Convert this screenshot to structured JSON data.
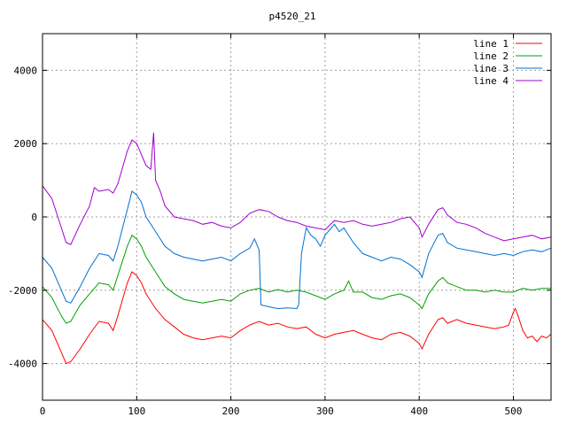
{
  "chart_data": {
    "type": "line",
    "title": "p4520_21",
    "xlabel": "",
    "ylabel": "",
    "xlim": [
      0,
      540
    ],
    "ylim": [
      -5000,
      5000
    ],
    "x_ticks": [
      0,
      100,
      200,
      300,
      400,
      500
    ],
    "y_ticks": [
      -4000,
      -2000,
      0,
      2000,
      4000
    ],
    "grid": true,
    "legend_position": "top-right",
    "series": [
      {
        "name": "line 1",
        "color": "#ff0000",
        "points": [
          [
            0,
            -2800
          ],
          [
            10,
            -3100
          ],
          [
            20,
            -3700
          ],
          [
            25,
            -4000
          ],
          [
            30,
            -3950
          ],
          [
            40,
            -3600
          ],
          [
            50,
            -3200
          ],
          [
            60,
            -2850
          ],
          [
            70,
            -2900
          ],
          [
            75,
            -3100
          ],
          [
            80,
            -2700
          ],
          [
            90,
            -1800
          ],
          [
            95,
            -1500
          ],
          [
            100,
            -1600
          ],
          [
            105,
            -1800
          ],
          [
            110,
            -2100
          ],
          [
            120,
            -2500
          ],
          [
            130,
            -2800
          ],
          [
            140,
            -3000
          ],
          [
            150,
            -3200
          ],
          [
            160,
            -3300
          ],
          [
            170,
            -3350
          ],
          [
            180,
            -3300
          ],
          [
            190,
            -3250
          ],
          [
            200,
            -3300
          ],
          [
            210,
            -3100
          ],
          [
            220,
            -2950
          ],
          [
            230,
            -2850
          ],
          [
            240,
            -2950
          ],
          [
            250,
            -2900
          ],
          [
            260,
            -3000
          ],
          [
            270,
            -3050
          ],
          [
            280,
            -3000
          ],
          [
            290,
            -3200
          ],
          [
            300,
            -3300
          ],
          [
            310,
            -3200
          ],
          [
            320,
            -3150
          ],
          [
            330,
            -3100
          ],
          [
            340,
            -3200
          ],
          [
            350,
            -3300
          ],
          [
            360,
            -3350
          ],
          [
            370,
            -3200
          ],
          [
            380,
            -3150
          ],
          [
            390,
            -3250
          ],
          [
            400,
            -3450
          ],
          [
            403,
            -3600
          ],
          [
            410,
            -3200
          ],
          [
            420,
            -2800
          ],
          [
            425,
            -2750
          ],
          [
            430,
            -2900
          ],
          [
            440,
            -2800
          ],
          [
            450,
            -2900
          ],
          [
            460,
            -2950
          ],
          [
            470,
            -3000
          ],
          [
            480,
            -3050
          ],
          [
            490,
            -3000
          ],
          [
            495,
            -2950
          ],
          [
            500,
            -2600
          ],
          [
            502,
            -2500
          ],
          [
            505,
            -2700
          ],
          [
            510,
            -3100
          ],
          [
            515,
            -3300
          ],
          [
            520,
            -3250
          ],
          [
            525,
            -3400
          ],
          [
            530,
            -3250
          ],
          [
            535,
            -3300
          ],
          [
            540,
            -3200
          ]
        ]
      },
      {
        "name": "line 2",
        "color": "#00a000",
        "points": [
          [
            0,
            -1900
          ],
          [
            10,
            -2200
          ],
          [
            20,
            -2700
          ],
          [
            25,
            -2900
          ],
          [
            30,
            -2850
          ],
          [
            40,
            -2400
          ],
          [
            50,
            -2100
          ],
          [
            60,
            -1800
          ],
          [
            70,
            -1850
          ],
          [
            75,
            -2000
          ],
          [
            80,
            -1600
          ],
          [
            90,
            -800
          ],
          [
            95,
            -500
          ],
          [
            100,
            -600
          ],
          [
            105,
            -800
          ],
          [
            110,
            -1100
          ],
          [
            120,
            -1500
          ],
          [
            130,
            -1900
          ],
          [
            140,
            -2100
          ],
          [
            150,
            -2250
          ],
          [
            160,
            -2300
          ],
          [
            170,
            -2350
          ],
          [
            180,
            -2300
          ],
          [
            190,
            -2250
          ],
          [
            200,
            -2300
          ],
          [
            210,
            -2100
          ],
          [
            220,
            -2000
          ],
          [
            230,
            -1950
          ],
          [
            240,
            -2050
          ],
          [
            250,
            -1980
          ],
          [
            260,
            -2050
          ],
          [
            270,
            -2000
          ],
          [
            280,
            -2050
          ],
          [
            290,
            -2150
          ],
          [
            300,
            -2250
          ],
          [
            310,
            -2100
          ],
          [
            320,
            -2000
          ],
          [
            325,
            -1750
          ],
          [
            330,
            -2050
          ],
          [
            340,
            -2050
          ],
          [
            350,
            -2200
          ],
          [
            360,
            -2250
          ],
          [
            370,
            -2150
          ],
          [
            380,
            -2100
          ],
          [
            390,
            -2200
          ],
          [
            400,
            -2400
          ],
          [
            403,
            -2500
          ],
          [
            410,
            -2100
          ],
          [
            420,
            -1750
          ],
          [
            425,
            -1650
          ],
          [
            430,
            -1800
          ],
          [
            440,
            -1900
          ],
          [
            450,
            -2000
          ],
          [
            460,
            -2000
          ],
          [
            470,
            -2050
          ],
          [
            480,
            -2000
          ],
          [
            490,
            -2050
          ],
          [
            500,
            -2050
          ],
          [
            510,
            -1950
          ],
          [
            520,
            -2000
          ],
          [
            530,
            -1950
          ],
          [
            540,
            -1950
          ]
        ]
      },
      {
        "name": "line 3",
        "color": "#0070d0",
        "points": [
          [
            0,
            -1100
          ],
          [
            10,
            -1400
          ],
          [
            20,
            -2000
          ],
          [
            25,
            -2300
          ],
          [
            30,
            -2350
          ],
          [
            40,
            -1900
          ],
          [
            50,
            -1400
          ],
          [
            60,
            -1000
          ],
          [
            70,
            -1050
          ],
          [
            75,
            -1200
          ],
          [
            80,
            -800
          ],
          [
            90,
            200
          ],
          [
            95,
            700
          ],
          [
            100,
            600
          ],
          [
            105,
            400
          ],
          [
            110,
            0
          ],
          [
            120,
            -400
          ],
          [
            130,
            -800
          ],
          [
            140,
            -1000
          ],
          [
            150,
            -1100
          ],
          [
            160,
            -1150
          ],
          [
            170,
            -1200
          ],
          [
            180,
            -1150
          ],
          [
            190,
            -1100
          ],
          [
            200,
            -1200
          ],
          [
            210,
            -1000
          ],
          [
            220,
            -850
          ],
          [
            225,
            -600
          ],
          [
            230,
            -900
          ],
          [
            232,
            -2400
          ],
          [
            240,
            -2450
          ],
          [
            250,
            -2500
          ],
          [
            260,
            -2480
          ],
          [
            270,
            -2500
          ],
          [
            272,
            -2400
          ],
          [
            275,
            -1000
          ],
          [
            280,
            -300
          ],
          [
            285,
            -500
          ],
          [
            290,
            -600
          ],
          [
            295,
            -800
          ],
          [
            300,
            -500
          ],
          [
            310,
            -200
          ],
          [
            315,
            -400
          ],
          [
            320,
            -300
          ],
          [
            330,
            -700
          ],
          [
            340,
            -1000
          ],
          [
            350,
            -1100
          ],
          [
            360,
            -1200
          ],
          [
            370,
            -1100
          ],
          [
            380,
            -1150
          ],
          [
            390,
            -1300
          ],
          [
            400,
            -1500
          ],
          [
            403,
            -1650
          ],
          [
            410,
            -1000
          ],
          [
            420,
            -500
          ],
          [
            425,
            -450
          ],
          [
            430,
            -700
          ],
          [
            440,
            -850
          ],
          [
            450,
            -900
          ],
          [
            460,
            -950
          ],
          [
            470,
            -1000
          ],
          [
            480,
            -1050
          ],
          [
            490,
            -1000
          ],
          [
            500,
            -1050
          ],
          [
            510,
            -950
          ],
          [
            520,
            -900
          ],
          [
            530,
            -950
          ],
          [
            540,
            -850
          ]
        ]
      },
      {
        "name": "line 4",
        "color": "#a000d0",
        "points": [
          [
            0,
            850
          ],
          [
            10,
            500
          ],
          [
            20,
            -300
          ],
          [
            25,
            -700
          ],
          [
            30,
            -750
          ],
          [
            40,
            -200
          ],
          [
            50,
            300
          ],
          [
            55,
            800
          ],
          [
            60,
            700
          ],
          [
            70,
            750
          ],
          [
            75,
            650
          ],
          [
            80,
            900
          ],
          [
            90,
            1800
          ],
          [
            95,
            2100
          ],
          [
            100,
            2000
          ],
          [
            105,
            1700
          ],
          [
            110,
            1400
          ],
          [
            115,
            1300
          ],
          [
            118,
            2300
          ],
          [
            120,
            1000
          ],
          [
            125,
            700
          ],
          [
            130,
            300
          ],
          [
            140,
            0
          ],
          [
            150,
            -50
          ],
          [
            160,
            -100
          ],
          [
            170,
            -200
          ],
          [
            180,
            -150
          ],
          [
            190,
            -250
          ],
          [
            200,
            -300
          ],
          [
            210,
            -150
          ],
          [
            220,
            100
          ],
          [
            230,
            200
          ],
          [
            240,
            150
          ],
          [
            250,
            0
          ],
          [
            260,
            -100
          ],
          [
            270,
            -150
          ],
          [
            280,
            -250
          ],
          [
            290,
            -300
          ],
          [
            300,
            -350
          ],
          [
            310,
            -100
          ],
          [
            320,
            -150
          ],
          [
            330,
            -100
          ],
          [
            340,
            -200
          ],
          [
            350,
            -250
          ],
          [
            360,
            -200
          ],
          [
            370,
            -150
          ],
          [
            380,
            -50
          ],
          [
            390,
            0
          ],
          [
            400,
            -300
          ],
          [
            403,
            -550
          ],
          [
            410,
            -200
          ],
          [
            420,
            200
          ],
          [
            425,
            250
          ],
          [
            430,
            50
          ],
          [
            440,
            -150
          ],
          [
            450,
            -200
          ],
          [
            460,
            -300
          ],
          [
            470,
            -450
          ],
          [
            480,
            -550
          ],
          [
            490,
            -650
          ],
          [
            500,
            -600
          ],
          [
            510,
            -550
          ],
          [
            520,
            -500
          ],
          [
            530,
            -600
          ],
          [
            540,
            -550
          ]
        ]
      }
    ]
  }
}
